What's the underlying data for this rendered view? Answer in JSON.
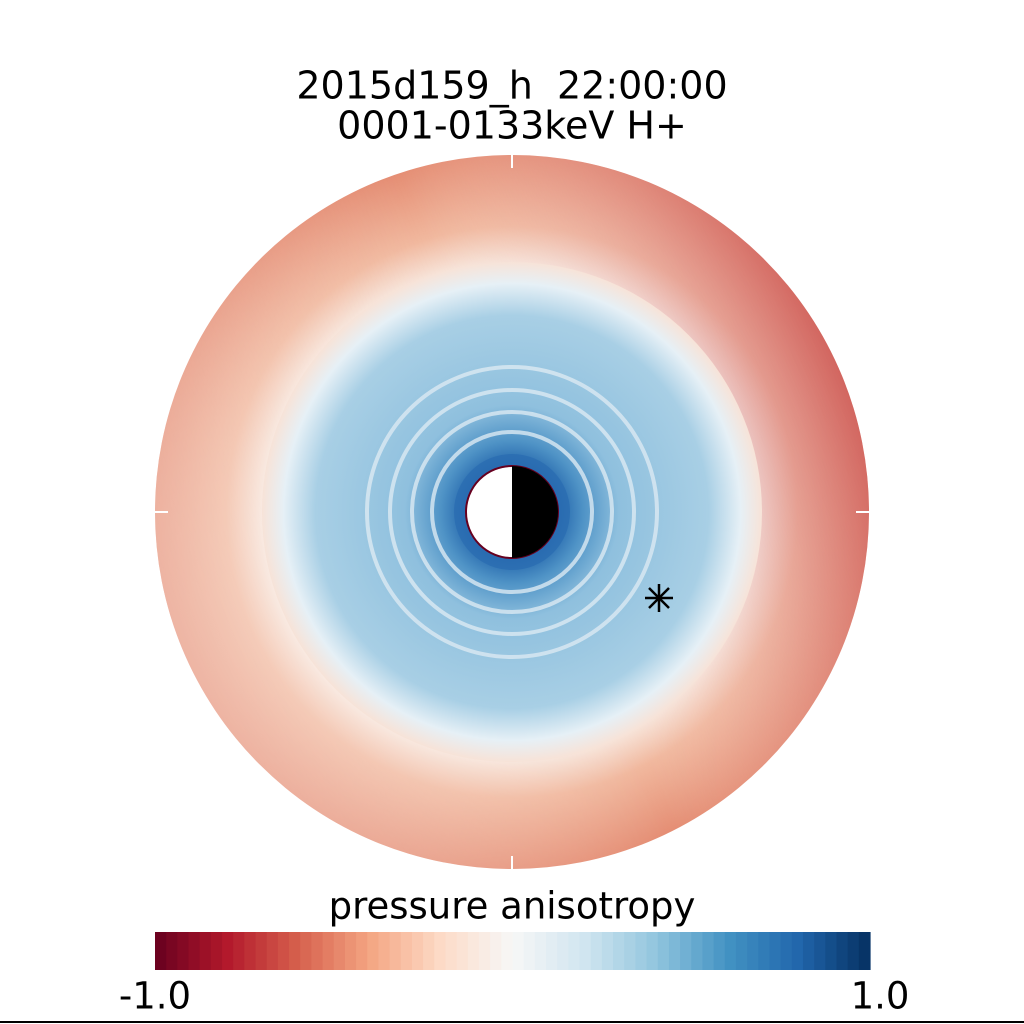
{
  "chart_data": {
    "type": "polar-map",
    "title": [
      "2015d159_h  22:00:00",
      "0001-0133keV H+"
    ],
    "colorbar_label": "pressure anisotropy",
    "clim": [
      -1,
      1
    ],
    "cticks": [
      {
        "value": -1,
        "label": "-1.0"
      },
      {
        "value": 1,
        "label": "1.0"
      }
    ],
    "colormap": [
      "#67001f",
      "#b2182b",
      "#d6604d",
      "#f4a582",
      "#fddbc7",
      "#f7f7f7",
      "#d1e5f0",
      "#92c5de",
      "#4393c3",
      "#2166ac",
      "#053061"
    ]
  }
}
